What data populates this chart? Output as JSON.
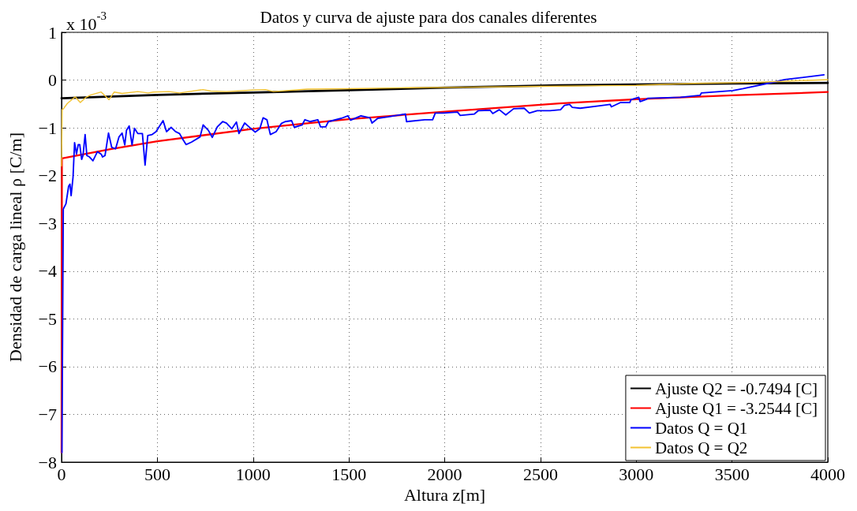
{
  "chart_data": {
    "type": "line",
    "title": "Datos y curva de ajuste para dos canales diferentes",
    "xlabel": "Altura z[m]",
    "ylabel": "Densidad de carga lineal ρ [C/m]",
    "annotations": [
      "x 10$^{-3}$"
    ],
    "xlim": [
      0,
      4000
    ],
    "xticks": [
      0,
      500,
      1000,
      1500,
      2000,
      2500,
      3000,
      3500,
      4000
    ],
    "ylim": [
      -8,
      1
    ],
    "yticks": [
      -8,
      -7,
      -6,
      -5,
      -4,
      -3,
      -2,
      -1,
      0,
      1
    ],
    "grid": true,
    "legend": "bottom right",
    "marker": "none",
    "line_style": "solid",
    "series": [
      {
        "name": "Ajuste Q2 = -0.7494 [C]",
        "color": "#000000",
        "x": [
          0,
          500,
          1000,
          1500,
          2000,
          2600,
          3000,
          3500,
          4000
        ],
        "values": [
          -0.38,
          -0.31,
          -0.26,
          -0.21,
          -0.16,
          -0.11,
          -0.09,
          -0.07,
          -0.06
        ]
      },
      {
        "name": "Ajuste Q1 = -3.2544 [C]",
        "color": "#ff0000",
        "x": [
          0,
          2,
          250,
          500,
          1000,
          1200,
          1500,
          2000,
          2600,
          3000,
          3500,
          4000
        ],
        "values": [
          -7.8,
          -1.64,
          -1.45,
          -1.28,
          -1.02,
          -0.94,
          -0.82,
          -0.66,
          -0.49,
          -0.4,
          -0.32,
          -0.25
        ]
      },
      {
        "name": "Datos Q = Q1",
        "color": "#0000ff",
        "x": [
          2,
          9,
          23,
          37,
          44,
          50,
          60,
          68,
          78,
          87,
          95,
          105,
          112,
          123,
          132,
          146,
          164,
          187,
          207,
          214,
          227,
          245,
          262,
          282,
          300,
          316,
          330,
          339,
          353,
          368,
          381,
          398,
          422,
          436,
          450,
          473,
          493,
          530,
          548,
          572,
          595,
          616,
          630,
          650,
          678,
          723,
          739,
          766,
          787,
          813,
          841,
          861,
          889,
          913,
          926,
          956,
          990,
          1011,
          1035,
          1052,
          1072,
          1090,
          1120,
          1147,
          1167,
          1201,
          1215,
          1256,
          1270,
          1297,
          1338,
          1352,
          1379,
          1393,
          1461,
          1495,
          1509,
          1563,
          1610,
          1621,
          1651,
          1706,
          1795,
          1801,
          1896,
          1937,
          1951,
          1992,
          2067,
          2081,
          2155,
          2176,
          2237,
          2251,
          2285,
          2319,
          2360,
          2415,
          2442,
          2483,
          2550,
          2605,
          2625,
          2652,
          2666,
          2707,
          2864,
          2870,
          2918,
          2966,
          2973,
          3013,
          3020,
          3054,
          3061,
          3231,
          3333,
          3340,
          3504,
          3558,
          3721,
          3776,
          3980
        ],
        "values": [
          -7.8,
          -2.7,
          -2.59,
          -2.22,
          -2.18,
          -2.42,
          -2.03,
          -1.31,
          -1.55,
          -1.35,
          -1.35,
          -1.66,
          -1.58,
          -1.14,
          -1.58,
          -1.61,
          -1.69,
          -1.5,
          -1.55,
          -1.61,
          -1.58,
          -1.11,
          -1.41,
          -1.44,
          -1.19,
          -1.11,
          -1.36,
          -1.05,
          -0.96,
          -1.36,
          -1.01,
          -1.12,
          -1.12,
          -1.78,
          -1.16,
          -1.14,
          -1.08,
          -0.85,
          -1.08,
          -0.99,
          -1.08,
          -1.12,
          -1.22,
          -1.35,
          -1.3,
          -1.19,
          -0.94,
          -1.05,
          -1.2,
          -0.98,
          -0.87,
          -0.9,
          -1.02,
          -0.88,
          -1.12,
          -0.9,
          -1.02,
          -1.09,
          -1.02,
          -0.79,
          -0.83,
          -1.14,
          -1.08,
          -0.91,
          -0.87,
          -0.85,
          -0.99,
          -0.94,
          -0.83,
          -0.87,
          -0.83,
          -0.98,
          -0.98,
          -0.87,
          -0.8,
          -0.75,
          -0.84,
          -0.75,
          -0.79,
          -0.9,
          -0.8,
          -0.77,
          -0.71,
          -0.87,
          -0.83,
          -0.83,
          -0.69,
          -0.69,
          -0.67,
          -0.74,
          -0.71,
          -0.64,
          -0.63,
          -0.7,
          -0.62,
          -0.73,
          -0.6,
          -0.59,
          -0.69,
          -0.64,
          -0.64,
          -0.62,
          -0.53,
          -0.51,
          -0.57,
          -0.59,
          -0.51,
          -0.56,
          -0.47,
          -0.47,
          -0.41,
          -0.36,
          -0.45,
          -0.4,
          -0.38,
          -0.36,
          -0.32,
          -0.27,
          -0.22,
          -0.18,
          -0.04,
          0.01,
          0.11
        ]
      },
      {
        "name": "Datos Q = Q2",
        "color": "#f2c230",
        "x": [
          0,
          3,
          10,
          30,
          71,
          98,
          128,
          153,
          207,
          248,
          275,
          316,
          398,
          452,
          479,
          561,
          616,
          738,
          779,
          861,
          997,
          1065,
          1106,
          1283,
          1500,
          1800,
          2100,
          2500,
          3000,
          3300,
          3600,
          3800,
          4000
        ],
        "values": [
          -1.8,
          -0.62,
          -0.6,
          -0.49,
          -0.35,
          -0.47,
          -0.36,
          -0.31,
          -0.25,
          -0.41,
          -0.25,
          -0.28,
          -0.24,
          -0.27,
          -0.25,
          -0.24,
          -0.27,
          -0.2,
          -0.23,
          -0.24,
          -0.21,
          -0.2,
          -0.24,
          -0.19,
          -0.18,
          -0.16,
          -0.15,
          -0.13,
          -0.11,
          -0.07,
          -0.05,
          -0.02,
          0.01
        ]
      }
    ]
  }
}
